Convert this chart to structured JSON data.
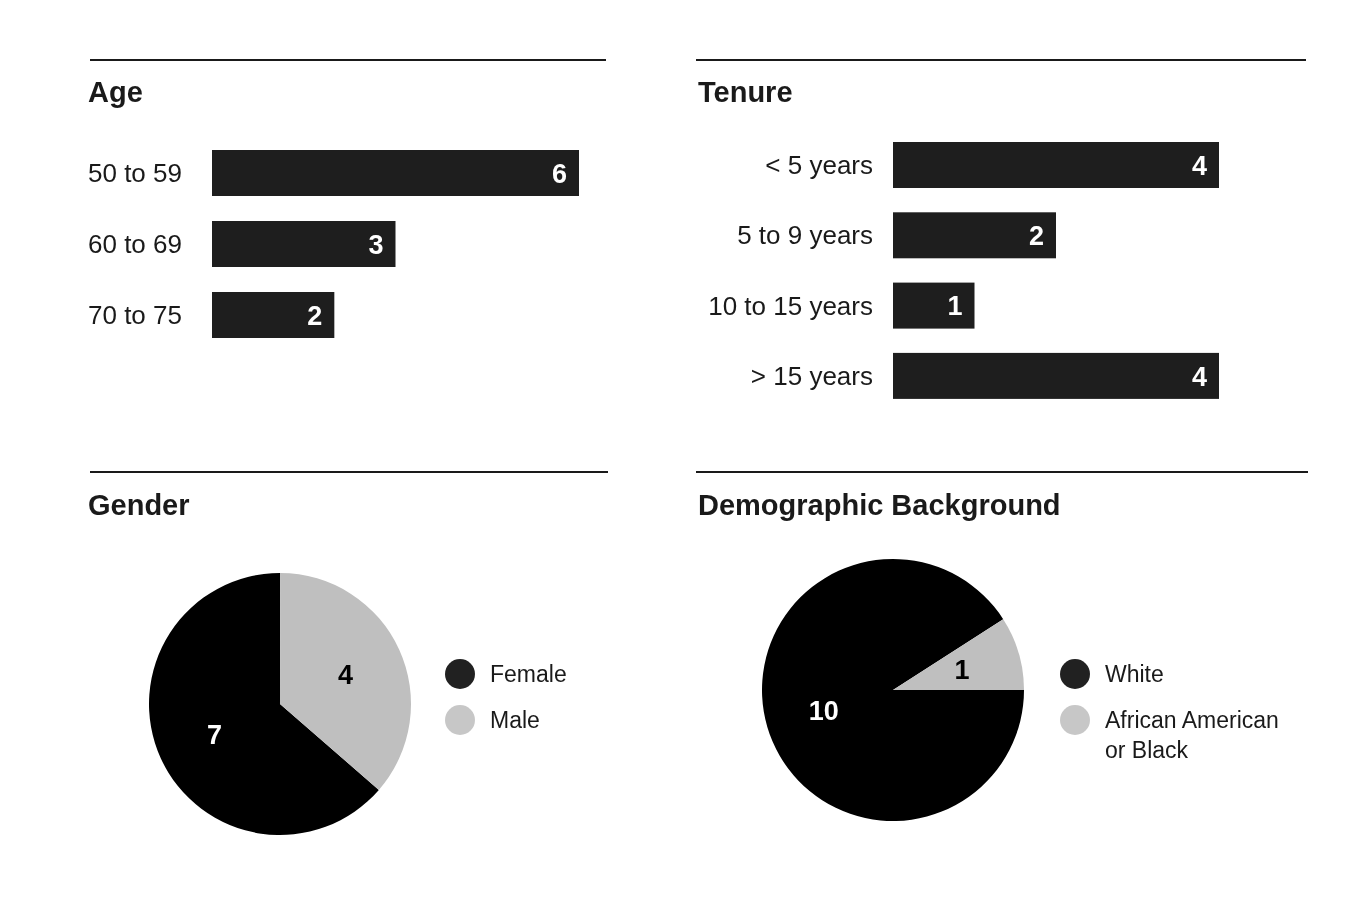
{
  "chart_data": [
    {
      "type": "bar",
      "orientation": "horizontal",
      "title": "Age",
      "categories": [
        "50 to 59",
        "60 to 69",
        "70 to 75"
      ],
      "values": [
        6,
        3,
        2
      ],
      "color": "#1e1e1e",
      "data_labels": true
    },
    {
      "type": "bar",
      "orientation": "horizontal",
      "title": "Tenure",
      "categories": [
        "< 5 years",
        "5 to 9 years",
        "10 to 15 years",
        "> 15 years"
      ],
      "values": [
        4,
        2,
        1,
        4
      ],
      "color": "#1e1e1e",
      "data_labels": true
    },
    {
      "type": "pie",
      "title": "Gender",
      "categories": [
        "Female",
        "Male"
      ],
      "values": [
        7,
        4
      ],
      "colors": [
        "#000000",
        "#bfbfbf"
      ],
      "data_labels": true,
      "legend": "right"
    },
    {
      "type": "pie",
      "title": "Demographic Background",
      "categories": [
        "White",
        "African American or Black"
      ],
      "values": [
        10,
        1
      ],
      "colors": [
        "#000000",
        "#bfbfbf"
      ],
      "data_labels": true,
      "legend": "right"
    }
  ]
}
